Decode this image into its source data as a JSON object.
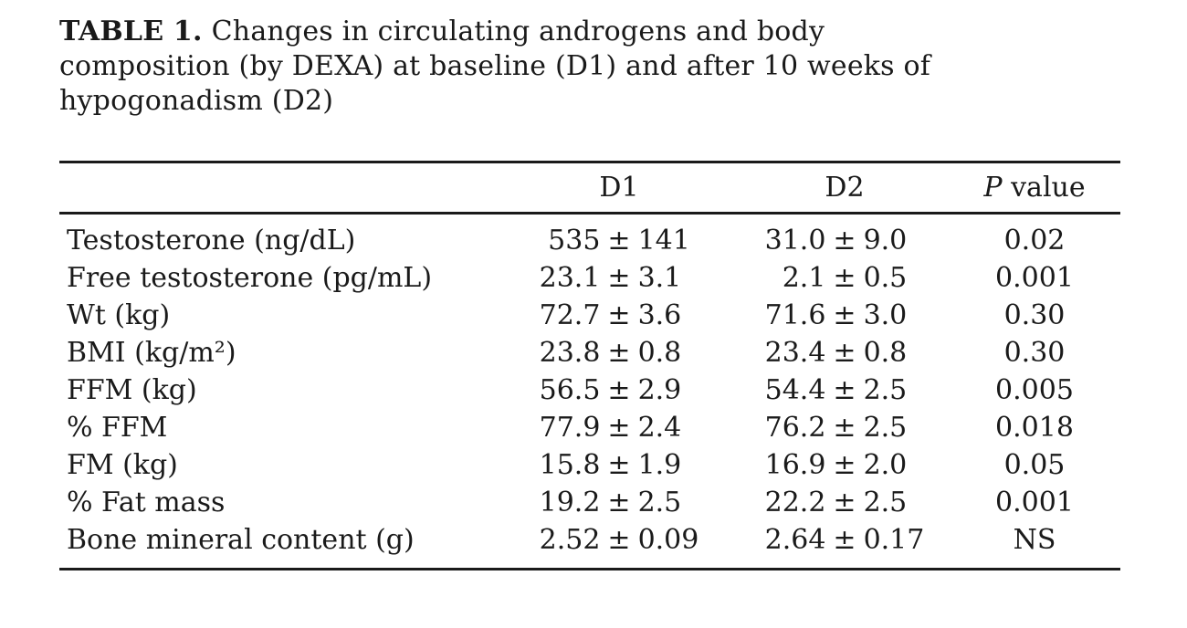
{
  "caption": {
    "label": "TABLE 1.",
    "line1": "Changes in circulating androgens and body",
    "line2": "composition (by DEXA) at baseline (D1) and after 10 weeks of",
    "line3": "hypogonadism (D2)"
  },
  "table": {
    "columns": {
      "d1": "D1",
      "d2": "D2",
      "p_italic": "P",
      "p_rest": "value"
    },
    "rows": [
      {
        "label": "Testosterone (ng/dL)",
        "d1": [
          "535",
          "±",
          "141"
        ],
        "d2": [
          "31.0",
          "±",
          "9.0"
        ],
        "p": "0.02"
      },
      {
        "label": "Free testosterone (pg/mL)",
        "d1": [
          "23.1",
          "±",
          "3.1"
        ],
        "d2": [
          "2.1",
          "±",
          "0.5"
        ],
        "p": "0.001"
      },
      {
        "label": "Wt (kg)",
        "d1": [
          "72.7",
          "±",
          "3.6"
        ],
        "d2": [
          "71.6",
          "±",
          "3.0"
        ],
        "p": "0.30"
      },
      {
        "label": "BMI (kg/m²)",
        "d1": [
          "23.8",
          "±",
          "0.8"
        ],
        "d2": [
          "23.4",
          "±",
          "0.8"
        ],
        "p": "0.30"
      },
      {
        "label": "FFM (kg)",
        "d1": [
          "56.5",
          "±",
          "2.9"
        ],
        "d2": [
          "54.4",
          "±",
          "2.5"
        ],
        "p": "0.005"
      },
      {
        "label": "% FFM",
        "d1": [
          "77.9",
          "±",
          "2.4"
        ],
        "d2": [
          "76.2",
          "±",
          "2.5"
        ],
        "p": "0.018"
      },
      {
        "label": "FM (kg)",
        "d1": [
          "15.8",
          "±",
          "1.9"
        ],
        "d2": [
          "16.9",
          "±",
          "2.0"
        ],
        "p": "0.05"
      },
      {
        "label": "% Fat mass",
        "d1": [
          "19.2",
          "±",
          "2.5"
        ],
        "d2": [
          "22.2",
          "±",
          "2.5"
        ],
        "p": "0.001"
      },
      {
        "label": "Bone mineral content (g)",
        "d1": [
          "2.52",
          "±",
          "0.09"
        ],
        "d2": [
          "2.64",
          "±",
          "0.17"
        ],
        "p": "NS"
      }
    ]
  },
  "colors": {
    "text": "#1a1a1a",
    "rule": "#1a1a1a",
    "background": "#ffffff"
  }
}
